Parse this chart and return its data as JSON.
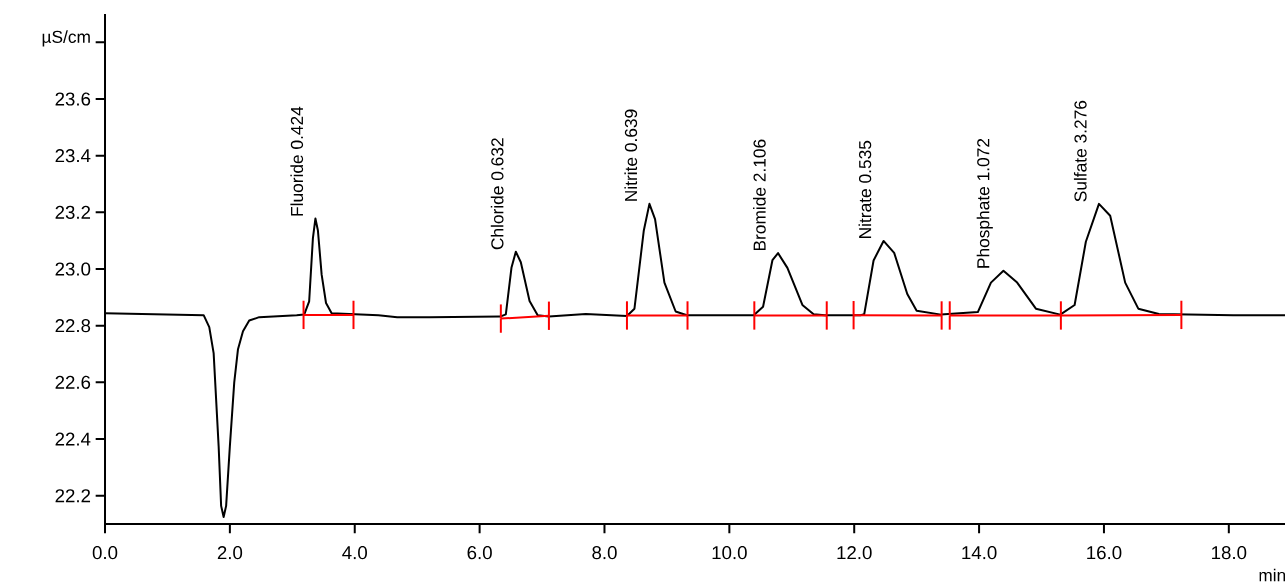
{
  "chart_data": {
    "type": "line",
    "xlabel": "min",
    "ylabel": "µS/cm",
    "xlim": [
      0,
      18.9
    ],
    "ylim": [
      22.1,
      23.9
    ],
    "xticks": [
      {
        "value": 0,
        "label": "0.0"
      },
      {
        "value": 2,
        "label": "2.0"
      },
      {
        "value": 4,
        "label": "4.0"
      },
      {
        "value": 6,
        "label": "6.0"
      },
      {
        "value": 8,
        "label": "8.0"
      },
      {
        "value": 10,
        "label": "10.0"
      },
      {
        "value": 12,
        "label": "12.0"
      },
      {
        "value": 14,
        "label": "14.0"
      },
      {
        "value": 16,
        "label": "16.0"
      },
      {
        "value": 18,
        "label": "18.0"
      }
    ],
    "yticks": [
      22.2,
      22.4,
      22.6,
      22.8,
      {
        "value": 23.0,
        "label": "23.0"
      },
      23.2,
      23.4,
      23.6,
      {
        "value": 23.8,
        "label": null
      }
    ],
    "series": [
      {
        "color": "#000000",
        "x": [
          0.0,
          1.58,
          1.67,
          1.74,
          1.82,
          1.86,
          1.9,
          1.94,
          2.0,
          2.07,
          2.13,
          2.21,
          2.31,
          2.47,
          3.07,
          3.19,
          3.27,
          3.33,
          3.37,
          3.41,
          3.47,
          3.54,
          3.63,
          4.38,
          4.68,
          5.2,
          6.33,
          6.42,
          6.51,
          6.58,
          6.66,
          6.8,
          6.93,
          7.11,
          7.7,
          8.36,
          8.48,
          8.63,
          8.72,
          8.81,
          8.96,
          9.14,
          9.32,
          10.39,
          10.54,
          10.69,
          10.78,
          10.93,
          11.17,
          11.35,
          11.53,
          12.1,
          12.16,
          12.31,
          12.47,
          12.64,
          12.85,
          13.0,
          13.39,
          13.98,
          14.19,
          14.39,
          14.61,
          14.91,
          15.3,
          15.53,
          15.71,
          15.92,
          16.1,
          16.34,
          16.55,
          16.88,
          18.07,
          18.9
        ],
        "values": [
          22.844,
          22.837,
          22.795,
          22.703,
          22.375,
          22.164,
          22.125,
          22.164,
          22.375,
          22.6,
          22.717,
          22.78,
          22.818,
          22.83,
          22.837,
          22.839,
          22.886,
          23.109,
          23.178,
          23.136,
          22.98,
          22.88,
          22.844,
          22.837,
          22.83,
          22.83,
          22.832,
          22.84,
          23.004,
          23.061,
          23.024,
          22.887,
          22.837,
          22.832,
          22.841,
          22.834,
          22.86,
          23.136,
          23.23,
          23.176,
          22.952,
          22.85,
          22.837,
          22.837,
          22.867,
          23.031,
          23.056,
          23.004,
          22.873,
          22.84,
          22.837,
          22.837,
          22.84,
          23.03,
          23.099,
          23.057,
          22.912,
          22.853,
          22.839,
          22.848,
          22.952,
          22.994,
          22.952,
          22.86,
          22.839,
          22.873,
          23.096,
          23.23,
          23.188,
          22.952,
          22.86,
          22.841,
          22.837,
          22.837
        ]
      },
      {
        "color": "#ff0000",
        "x": [
          3.18,
          3.98
        ],
        "values": [
          22.838,
          22.838
        ],
        "errors": [
          0.05,
          0.05
        ]
      },
      {
        "color": "#ff0000",
        "x": [
          6.34,
          7.11
        ],
        "values": [
          22.825,
          22.835
        ],
        "errors": [
          0.05,
          0.05
        ]
      },
      {
        "color": "#ff0000",
        "x": [
          8.36,
          9.33
        ],
        "values": [
          22.836,
          22.836
        ],
        "errors": [
          0.05,
          0.05
        ]
      },
      {
        "color": "#ff0000",
        "x": [
          10.4,
          11.56
        ],
        "values": [
          22.836,
          22.836
        ],
        "errors": [
          0.05,
          0.05
        ]
      },
      {
        "color": "#ff0000",
        "x": [
          11.99,
          13.4
        ],
        "values": [
          22.837,
          22.836
        ],
        "errors": [
          0.05,
          0.05
        ]
      },
      {
        "color": "#ff0000",
        "x": [
          13.53,
          15.31,
          17.24
        ],
        "values": [
          22.836,
          22.836,
          22.838
        ],
        "errors": [
          0.05,
          0.05,
          0.05
        ]
      }
    ],
    "annotations": [
      {
        "text": "Fluoride 0.424",
        "x": 3.37,
        "y": 23.178
      },
      {
        "text": "Chloride 0.632",
        "x": 6.58,
        "y": 23.061
      },
      {
        "text": "Nitrite 0.639",
        "x": 8.72,
        "y": 23.23
      },
      {
        "text": "Bromide 2.106",
        "x": 10.78,
        "y": 23.056
      },
      {
        "text": "Nitrate 0.535",
        "x": 12.47,
        "y": 23.099
      },
      {
        "text": "Phosphate 1.072",
        "x": 14.39,
        "y": 22.994
      },
      {
        "text": "Sulfate 3.276",
        "x": 15.92,
        "y": 23.23
      }
    ]
  }
}
